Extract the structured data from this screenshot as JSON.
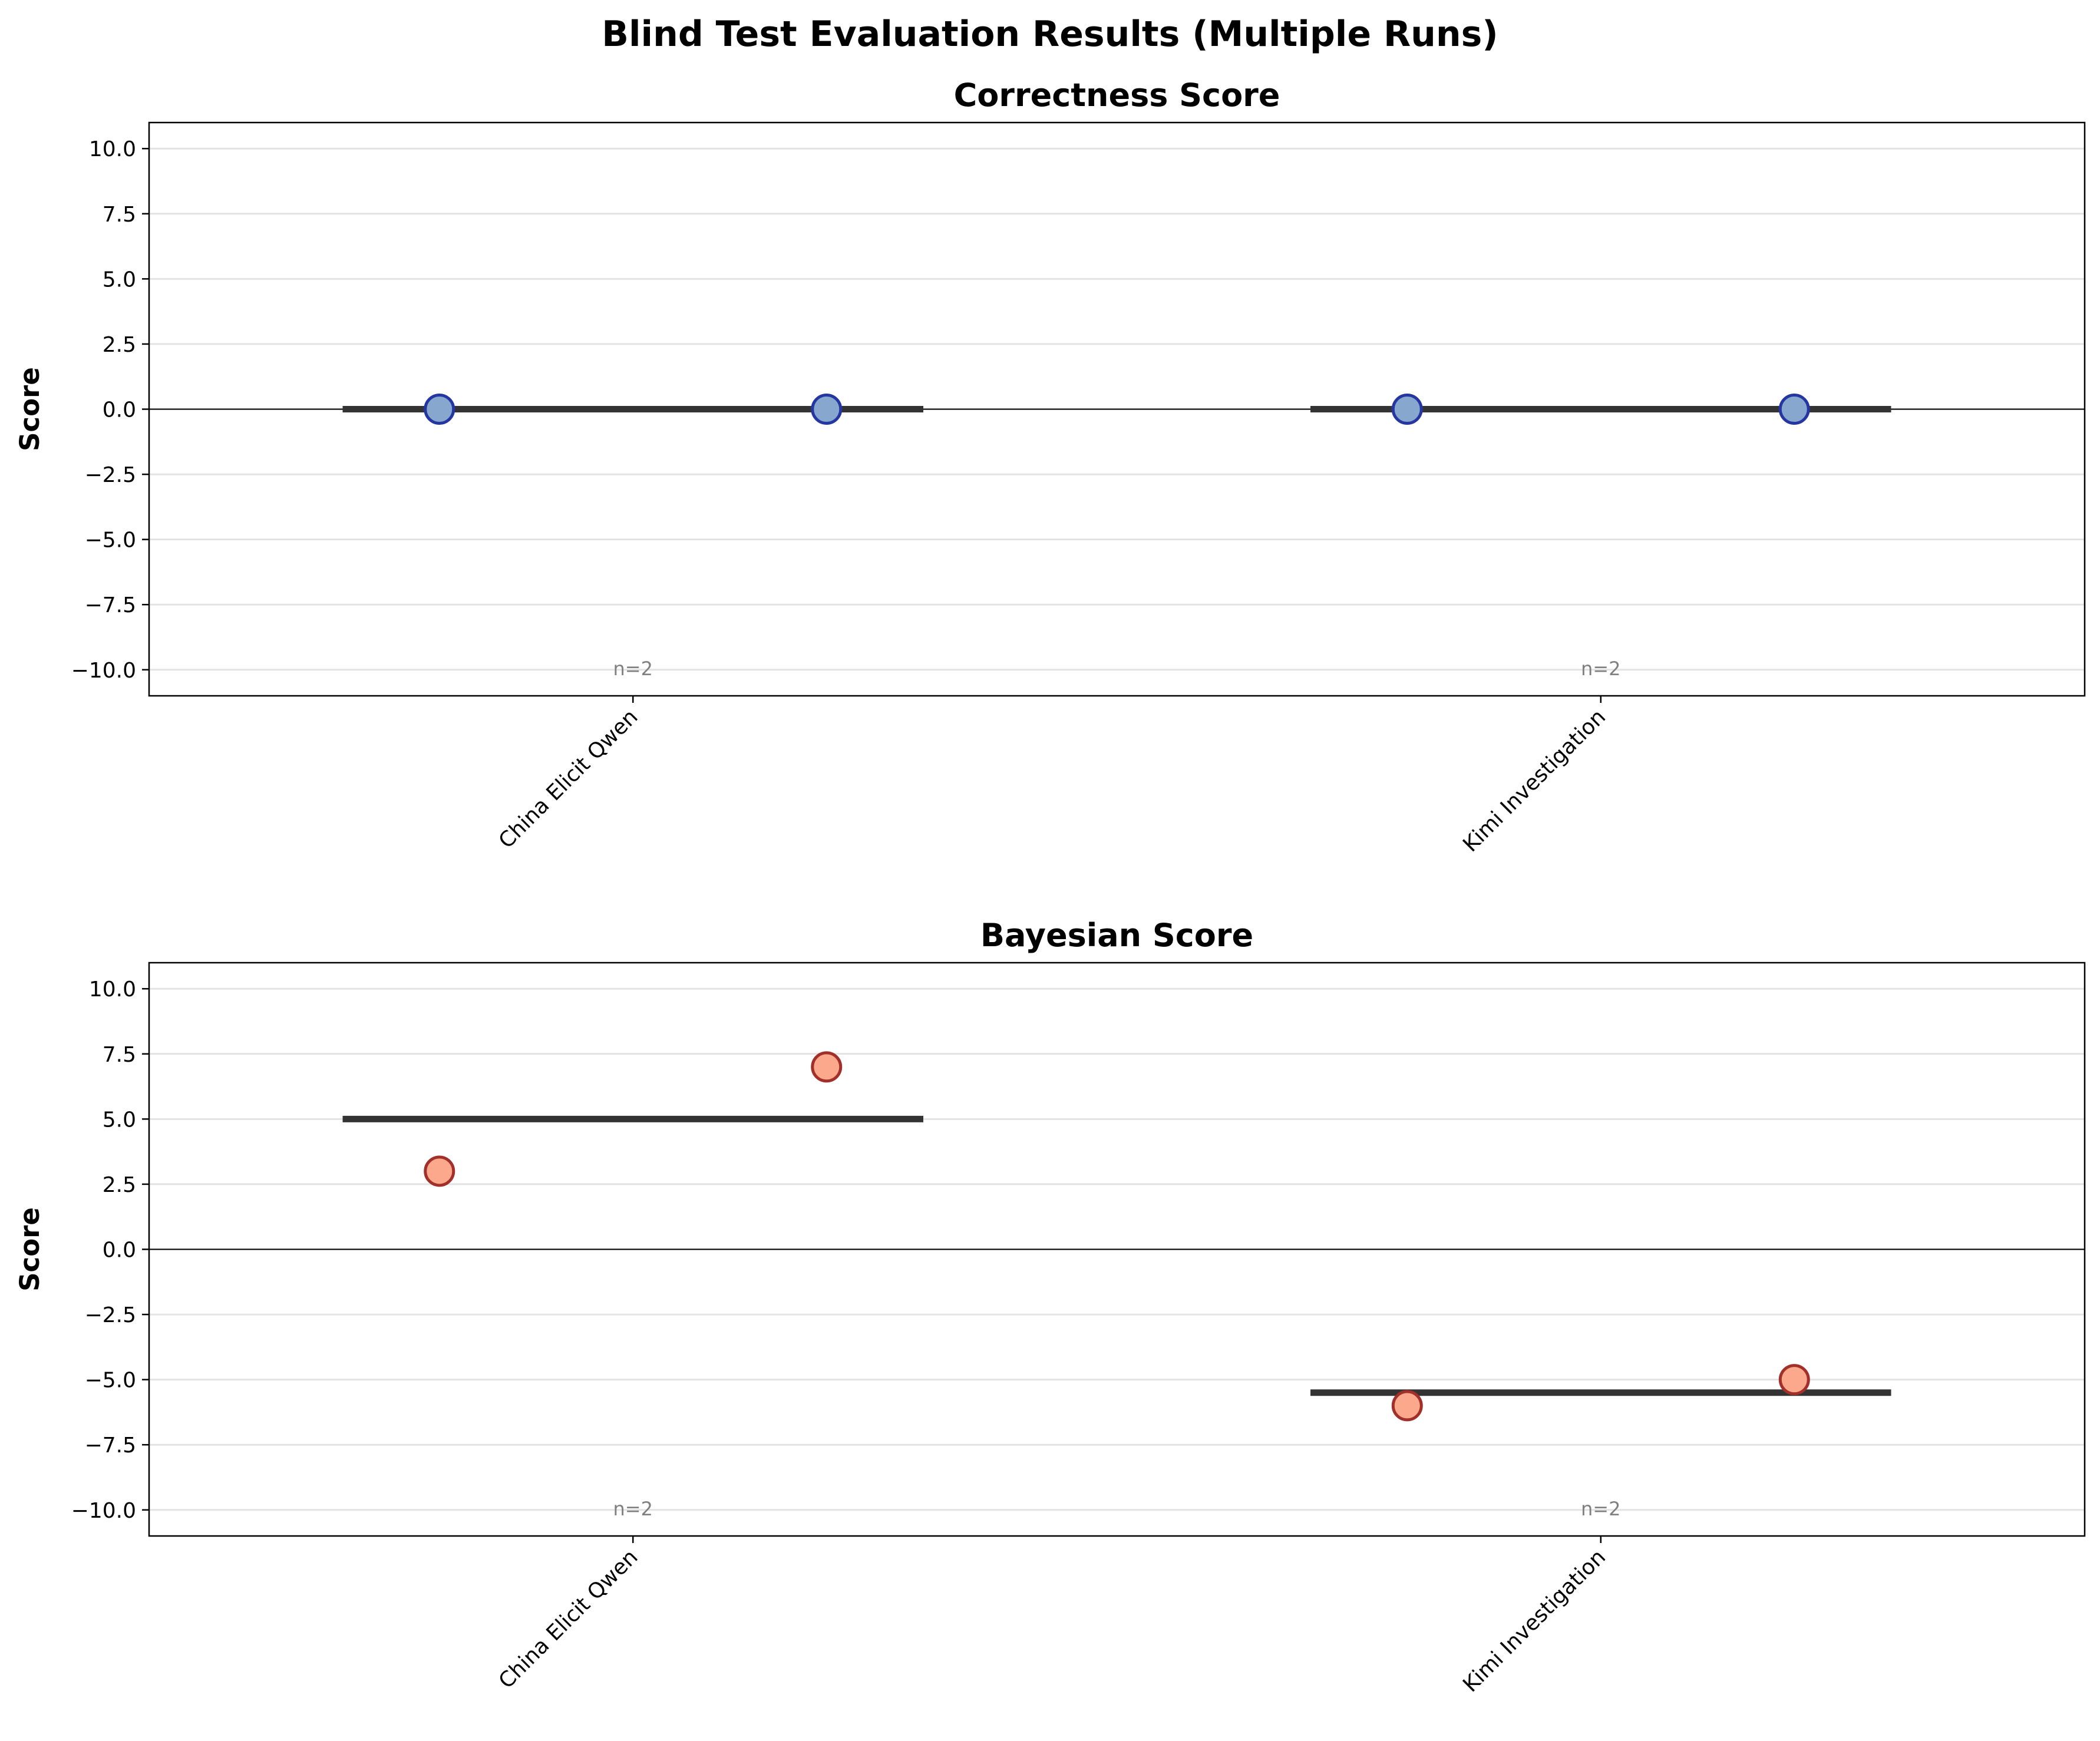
{
  "figure": {
    "suptitle": "Blind Test Evaluation Results (Multiple Runs)"
  },
  "chart_data": [
    {
      "type": "scatter",
      "title": "Correctness Score",
      "ylabel": "Score",
      "xlabel": "",
      "ylim": [
        -11,
        11
      ],
      "yticks": [
        10,
        7.5,
        5,
        2.5,
        0,
        -2.5,
        -5,
        -7.5,
        -10
      ],
      "ytick_labels": [
        "10.0",
        "7.5",
        "5.0",
        "2.5",
        "0.0",
        "−2.5",
        "−5.0",
        "−7.5",
        "−10.0"
      ],
      "grid": "horizontal",
      "zero_line": true,
      "point_fill": "#87a7cf",
      "point_edge": "#2636a0",
      "categories": [
        {
          "name": "China Elicit Qwen",
          "points": [
            0,
            0
          ],
          "mean": 0,
          "n_label": "n=2"
        },
        {
          "name": "Kimi Investigation",
          "points": [
            0,
            0
          ],
          "mean": 0,
          "n_label": "n=2"
        }
      ]
    },
    {
      "type": "scatter",
      "title": "Bayesian Score",
      "ylabel": "Score",
      "xlabel": "",
      "ylim": [
        -11,
        11
      ],
      "yticks": [
        10,
        7.5,
        5,
        2.5,
        0,
        -2.5,
        -5,
        -7.5,
        -10
      ],
      "ytick_labels": [
        "10.0",
        "7.5",
        "5.0",
        "2.5",
        "0.0",
        "−2.5",
        "−5.0",
        "−7.5",
        "−10.0"
      ],
      "grid": "horizontal",
      "zero_line": true,
      "point_fill": "#fca88c",
      "point_edge": "#a1302a",
      "categories": [
        {
          "name": "China Elicit Qwen",
          "points": [
            3,
            7
          ],
          "mean": 5,
          "n_label": "n=2"
        },
        {
          "name": "Kimi Investigation",
          "points": [
            -6,
            -5
          ],
          "mean": -5.5,
          "n_label": "n=2"
        }
      ]
    }
  ]
}
